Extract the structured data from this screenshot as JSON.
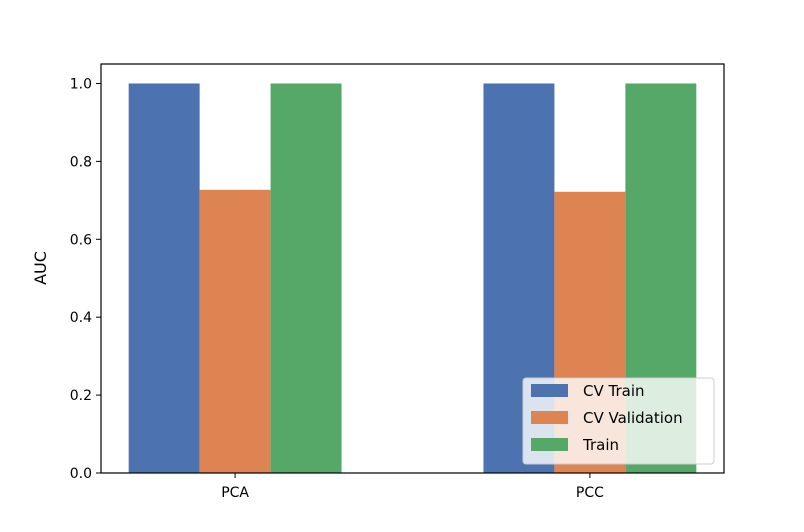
{
  "chart_data": {
    "type": "bar",
    "title": "",
    "xlabel": "",
    "ylabel": "AUC",
    "categories": [
      "PCA",
      "PCC"
    ],
    "series": [
      {
        "name": "CV Train",
        "values": [
          1.0,
          1.0
        ],
        "color": "#4c72b0"
      },
      {
        "name": "CV Validation",
        "values": [
          0.727,
          0.722
        ],
        "color": "#dd8452"
      },
      {
        "name": "Train",
        "values": [
          1.0,
          1.0
        ],
        "color": "#55a868"
      }
    ],
    "ylim": [
      0,
      1.05
    ],
    "yticks": [
      "0.0",
      "0.2",
      "0.4",
      "0.6",
      "0.8",
      "1.0"
    ],
    "grid": false,
    "legend_position": "bottom-right"
  }
}
